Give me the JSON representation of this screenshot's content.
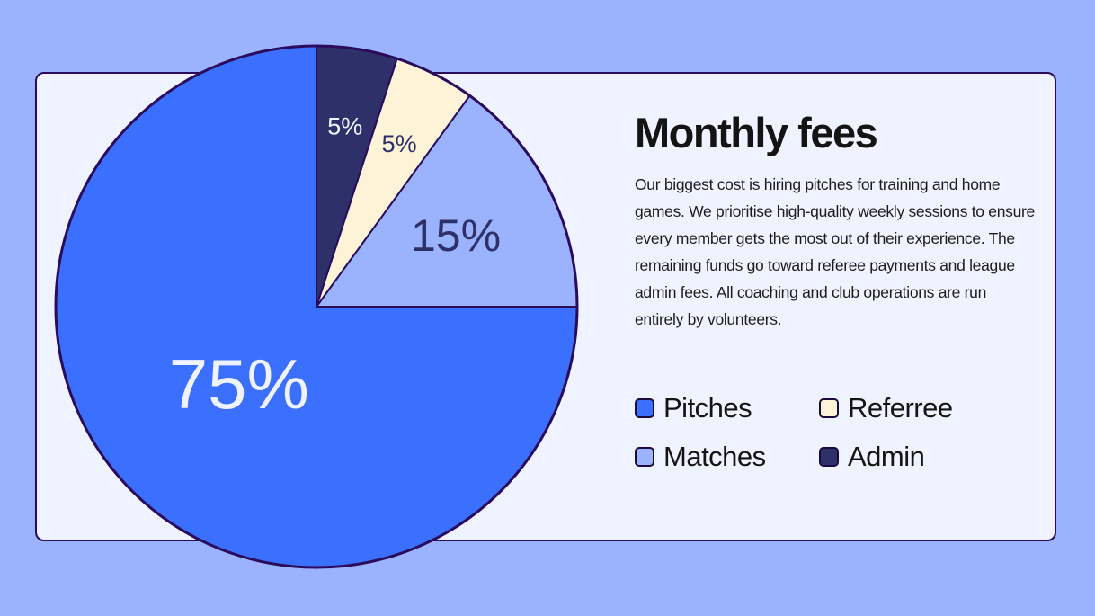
{
  "colors": {
    "background": "#9bb3fd",
    "card": "#eff3ff",
    "outline": "#2a0b5c"
  },
  "card": {
    "title": "Monthly fees",
    "description": "Our biggest cost is hiring pitches for training and home games. We prioritise high-quality weekly sessions to ensure every member gets the most out of their experience. The remaining funds go toward referee payments and league admin fees. All coaching and club operations are run entirely by volunteers."
  },
  "chart_data": {
    "type": "pie",
    "categories": [
      "Pitches",
      "Matches",
      "Referree",
      "Admin"
    ],
    "values": [
      75,
      15,
      5,
      5
    ],
    "labels": [
      "75%",
      "15%",
      "5%",
      "5%"
    ],
    "colors": [
      "#3b6ffd",
      "#9bb3fd",
      "#fdf3d6",
      "#2e3169"
    ],
    "label_colors": [
      "#eff3ff",
      "#2e3169",
      "#2e3169",
      "#eff3ff"
    ],
    "start": "top",
    "direction": "clockwise",
    "legend": "right"
  },
  "legend": [
    {
      "label": "Pitches",
      "color": "#3b6ffd"
    },
    {
      "label": "Referree",
      "color": "#fdf3d6"
    },
    {
      "label": "Matches",
      "color": "#9bb3fd"
    },
    {
      "label": "Admin",
      "color": "#2e3169"
    }
  ]
}
